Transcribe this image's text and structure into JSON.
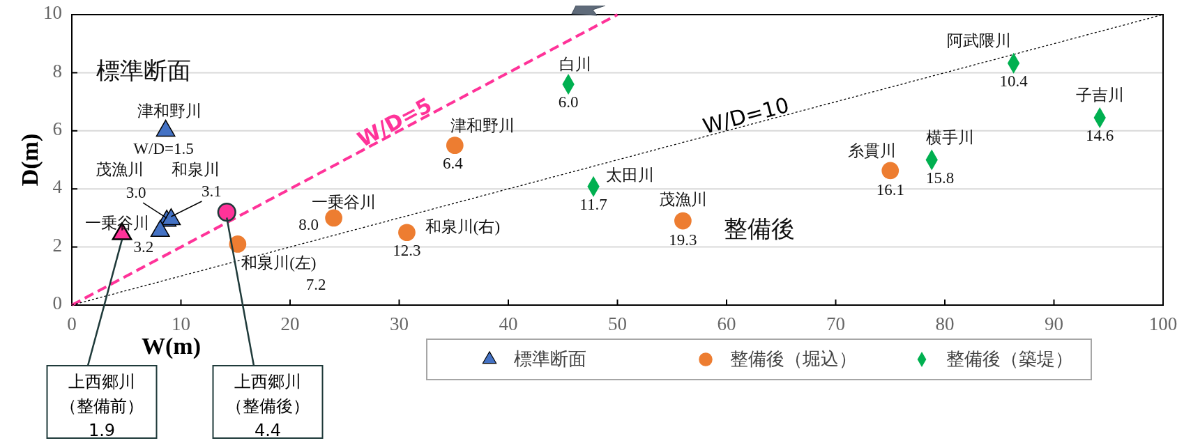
{
  "chart_data": {
    "type": "scatter",
    "xlabel": "W(m)",
    "ylabel": "D(m)",
    "xlim": [
      0,
      100
    ],
    "ylim": [
      0,
      10
    ],
    "xticks": [
      0,
      10,
      20,
      30,
      40,
      50,
      60,
      70,
      80,
      90,
      100
    ],
    "yticks": [
      0,
      2,
      4,
      6,
      8,
      10
    ],
    "grid": "y",
    "legend": "bottom",
    "series": [
      {
        "name": "標準断面",
        "color": "#4472c4",
        "marker": "triangle",
        "x": [
          8.6,
          8.7,
          9.1,
          8.1
        ],
        "values": [
          6.0,
          2.9,
          2.95,
          2.55
        ]
      },
      {
        "name": "整備後（堀込）",
        "color": "#ed7d31",
        "marker": "circle",
        "x": [
          15.2,
          24.0,
          35.1,
          30.7,
          56.0,
          75.0
        ],
        "values": [
          2.1,
          3.0,
          5.5,
          2.5,
          2.9,
          4.63
        ]
      },
      {
        "name": "整備後（築堤）",
        "color": "#00b050",
        "marker": "diamond",
        "x": [
          45.5,
          47.8,
          78.8,
          86.3,
          94.2
        ],
        "values": [
          7.6,
          4.08,
          5.0,
          8.33,
          6.45
        ]
      },
      {
        "color": "#ff3399",
        "marker": "triangle",
        "x": [
          4.6
        ],
        "values": [
          2.45
        ]
      },
      {
        "color": "#ff3399",
        "marker": "circle",
        "x": [
          14.2
        ],
        "values": [
          3.2
        ]
      },
      {
        "name": "W/D=5",
        "type": "line",
        "color": "#ff3399",
        "line_style": "dashed",
        "x": [
          0,
          50
        ],
        "values": [
          0,
          10
        ]
      },
      {
        "name": "W/D=10",
        "type": "line",
        "color": "#000000",
        "line_style": "dotted",
        "x": [
          0,
          100
        ],
        "values": [
          0,
          10
        ]
      }
    ],
    "annotations": [
      "標準断面",
      "整備後",
      {
        "text": "津和野川",
        "x": 8.6,
        "y": 6.0
      },
      {
        "text": "W/D=1.5",
        "x": 8.6,
        "y": 6.0
      },
      "茂漁川",
      {
        "text": "3.0",
        "x": 8.7,
        "y": 2.9
      },
      {
        "text": "和泉川",
        "x": 9.1,
        "y": 2.95
      },
      {
        "text": "3.1",
        "x": 9.1,
        "y": 2.95
      },
      {
        "text": "一乗谷川",
        "x": 8.1,
        "y": 2.55
      },
      {
        "text": "3.2",
        "x": 8.1,
        "y": 2.55
      },
      {
        "text": "和泉川(左)",
        "x": 15.2,
        "y": 2.1
      },
      "7.2",
      {
        "text": "一乗谷川",
        "x": 24.0,
        "y": 3.0
      },
      {
        "text": "8.0",
        "x": 24.0,
        "y": 3.0
      },
      {
        "text": "津和野川",
        "x": 35.1,
        "y": 5.5
      },
      {
        "text": "6.4",
        "x": 35.1,
        "y": 5.5
      },
      {
        "text": "和泉川(右)",
        "x": 30.7,
        "y": 2.5
      },
      {
        "text": "12.3",
        "x": 30.7,
        "y": 2.5
      },
      {
        "text": "茂漁川",
        "x": 56.0,
        "y": 2.9
      },
      {
        "text": "19.3",
        "x": 56.0,
        "y": 2.9
      },
      {
        "text": "糸貫川",
        "x": 75.0,
        "y": 4.63
      },
      {
        "text": "16.1",
        "x": 75.0,
        "y": 4.63
      },
      {
        "text": "白川",
        "x": 45.5,
        "y": 7.6
      },
      {
        "text": "6.0",
        "x": 45.5,
        "y": 7.6
      },
      {
        "text": "太田川",
        "x": 47.8,
        "y": 4.08
      },
      {
        "text": "11.7",
        "x": 47.8,
        "y": 4.08
      },
      {
        "text": "横手川",
        "x": 78.8,
        "y": 5.0
      },
      {
        "text": "15.8",
        "x": 78.8,
        "y": 5.0
      },
      {
        "text": "阿武隈川",
        "x": 86.3,
        "y": 8.33
      },
      {
        "text": "10.4",
        "x": 86.3,
        "y": 8.33
      },
      {
        "text": "子吉川",
        "x": 94.2,
        "y": 6.45
      },
      {
        "text": "14.6",
        "x": 94.2,
        "y": 6.45
      },
      {
        "text": "上西郷川（整備前）",
        "x": 4.6,
        "y": 2.45
      },
      "1.9",
      {
        "text": "上西郷川（整備後）",
        "x": 14.2,
        "y": 3.2
      },
      "4.4"
    ]
  }
}
